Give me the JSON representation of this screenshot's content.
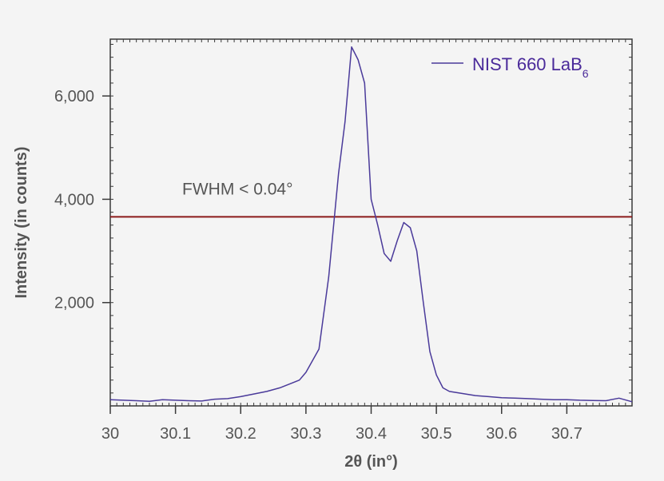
{
  "chart_data": {
    "type": "line",
    "xlabel": "2θ (in°)",
    "ylabel": "Intensity (in counts)",
    "xlim": [
      30,
      30.8
    ],
    "ylim": [
      0,
      7100
    ],
    "x_ticks": [
      30,
      30.1,
      30.2,
      30.3,
      30.4,
      30.5,
      30.6,
      30.7
    ],
    "x_tick_labels": [
      "30",
      "30.1",
      "30.2",
      "30.3",
      "30.4",
      "30.5",
      "30.6",
      "30.7"
    ],
    "y_ticks": [
      2000,
      4000,
      6000
    ],
    "y_tick_labels": [
      "2,000",
      "4,000",
      "6,000"
    ],
    "grid": false,
    "legend_position": "top-right",
    "series": [
      {
        "name": "NIST 660 LaB",
        "name_subscript": "6",
        "color": "#4a3a9a",
        "x": [
          30.0,
          30.02,
          30.04,
          30.06,
          30.08,
          30.1,
          30.12,
          30.14,
          30.16,
          30.18,
          30.2,
          30.22,
          30.24,
          30.26,
          30.28,
          30.29,
          30.3,
          30.32,
          30.335,
          30.35,
          30.36,
          30.37,
          30.38,
          30.39,
          30.4,
          30.41,
          30.42,
          30.43,
          30.44,
          30.45,
          30.46,
          30.47,
          30.48,
          30.49,
          30.5,
          30.51,
          30.52,
          30.54,
          30.56,
          30.58,
          30.6,
          30.62,
          30.64,
          30.66,
          30.68,
          30.7,
          30.72,
          30.74,
          30.76,
          30.78,
          30.8
        ],
        "y": [
          120,
          110,
          100,
          90,
          120,
          110,
          100,
          95,
          130,
          140,
          180,
          230,
          280,
          350,
          450,
          500,
          650,
          1100,
          2500,
          4500,
          5500,
          6950,
          6700,
          6250,
          4000,
          3500,
          2950,
          2800,
          3200,
          3550,
          3450,
          3000,
          2000,
          1050,
          600,
          350,
          280,
          240,
          200,
          180,
          160,
          150,
          140,
          130,
          120,
          120,
          110,
          105,
          100,
          150,
          80
        ]
      }
    ],
    "reference_lines": [
      {
        "y": 3660,
        "color": "#8b1a1a",
        "label": "FWHM < 0.04°"
      }
    ]
  }
}
